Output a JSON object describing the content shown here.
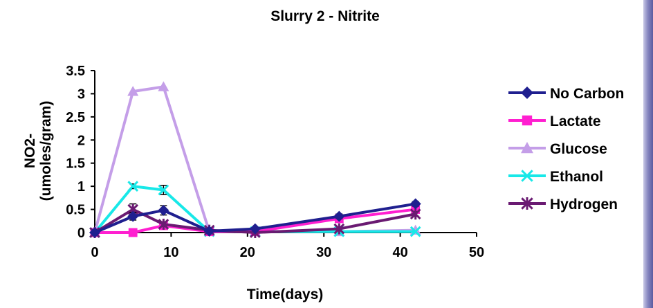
{
  "chart_data": {
    "type": "line",
    "title": "Slurry 2  - Nitrite",
    "xlabel": "Time(days)",
    "ylabel_line1": "NO2-",
    "ylabel_line2": "(umoles/gram)",
    "xlim": [
      0,
      50
    ],
    "ylim": [
      0,
      3.5
    ],
    "xticks": [
      0,
      10,
      20,
      30,
      40,
      50
    ],
    "yticks": [
      0,
      0.5,
      1,
      1.5,
      2,
      2.5,
      3,
      3.5
    ],
    "ytick_labels": [
      "0",
      "0.5",
      "1",
      "1.5",
      "2",
      "2.5",
      "3",
      "3.5"
    ],
    "grid": false,
    "legend_position": "right",
    "series": [
      {
        "name": "No Carbon",
        "color": "#1f1f8f",
        "marker": "diamond",
        "x": [
          0,
          5,
          9,
          15,
          21,
          32,
          42
        ],
        "y": [
          0,
          0.35,
          0.48,
          0.03,
          0.08,
          0.35,
          0.62
        ],
        "err": [
          0,
          0.08,
          0.1,
          0,
          0,
          0.05,
          0.05
        ]
      },
      {
        "name": "Lactate",
        "color": "#ff1fd0",
        "marker": "square",
        "x": [
          0,
          5,
          9,
          15,
          21,
          32,
          42
        ],
        "y": [
          0,
          0,
          0.15,
          0.02,
          0.02,
          0.3,
          0.5
        ],
        "err": [
          0,
          0,
          0,
          0,
          0,
          0.05,
          0.05
        ]
      },
      {
        "name": "Glucose",
        "color": "#c49ee8",
        "marker": "triangle",
        "x": [
          0,
          5,
          9,
          15,
          21,
          32,
          42
        ],
        "y": [
          0,
          3.05,
          3.15,
          0.02,
          0.02,
          0.02,
          0.05
        ],
        "err": [
          0,
          0,
          0,
          0,
          0,
          0,
          0
        ]
      },
      {
        "name": "Ethanol",
        "color": "#18e8e8",
        "marker": "x",
        "x": [
          0,
          5,
          9,
          15,
          21,
          32,
          42
        ],
        "y": [
          0,
          1.0,
          0.92,
          0.02,
          0.02,
          0.02,
          0.02
        ],
        "err": [
          0,
          0.05,
          0.1,
          0,
          0,
          0,
          0
        ]
      },
      {
        "name": "Hydrogen",
        "color": "#6a1a72",
        "marker": "star",
        "x": [
          0,
          5,
          9,
          15,
          21,
          32,
          42
        ],
        "y": [
          0,
          0.5,
          0.18,
          0.05,
          0.0,
          0.08,
          0.4
        ],
        "err": [
          0,
          0.12,
          0.05,
          0,
          0,
          0,
          0.05
        ]
      }
    ]
  }
}
